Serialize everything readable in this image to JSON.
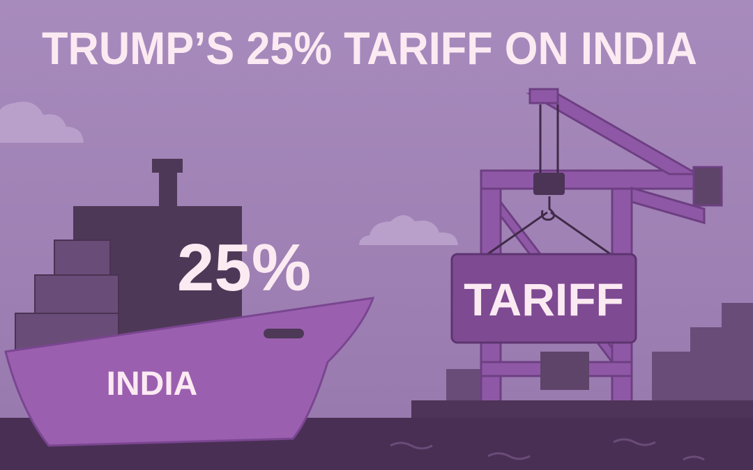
{
  "title": "TRUMP’S 25% TARIFF ON INDIA",
  "ship": {
    "stamp": "25%",
    "name": "INDIA"
  },
  "crane": {
    "sign": "TARIFF"
  }
}
